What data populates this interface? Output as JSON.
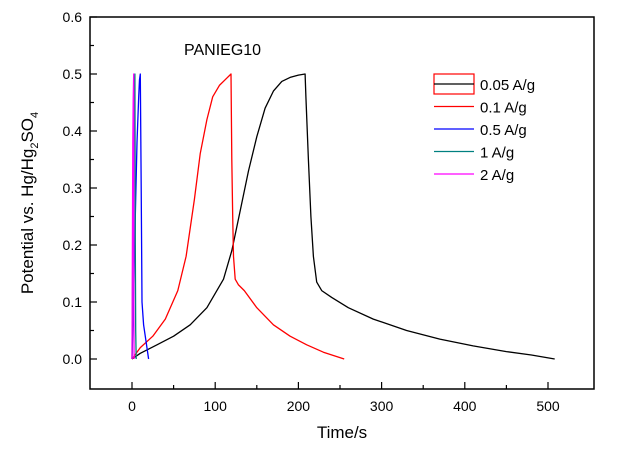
{
  "chart_data": {
    "type": "line",
    "title": "",
    "annotation": "PANIEG10",
    "xlabel": "Time/s",
    "ylabel_main": "Potential vs. Hg/Hg",
    "ylabel_sub1": "2",
    "ylabel_mid": "SO",
    "ylabel_sub2": "4",
    "xlim": [
      -50,
      550
    ],
    "ylim": [
      -0.05,
      0.6
    ],
    "xticks": [
      0,
      100,
      200,
      300,
      400,
      500
    ],
    "xtick_labels": [
      "0",
      "100",
      "200",
      "300",
      "400",
      "500"
    ],
    "xminor": [
      50,
      150,
      250,
      350,
      450
    ],
    "yticks": [
      0.0,
      0.1,
      0.2,
      0.3,
      0.4,
      0.5,
      0.6
    ],
    "ytick_labels": [
      "0.0",
      "0.1",
      "0.2",
      "0.3",
      "0.4",
      "0.5",
      "0.6"
    ],
    "yminor": [
      0.05,
      0.15,
      0.25,
      0.35,
      0.45,
      0.55
    ],
    "grid": false,
    "legend_position": "top-right",
    "series": [
      {
        "name": "0.05 A/g",
        "color": "#000000",
        "x": [
          0,
          10,
          30,
          50,
          70,
          90,
          110,
          120,
          130,
          140,
          150,
          160,
          170,
          180,
          190,
          200,
          208,
          209,
          212,
          215,
          218,
          222,
          228,
          240,
          260,
          290,
          330,
          370,
          410,
          450,
          480,
          508
        ],
        "y": [
          0.0,
          0.01,
          0.025,
          0.04,
          0.06,
          0.09,
          0.14,
          0.19,
          0.26,
          0.33,
          0.39,
          0.44,
          0.47,
          0.487,
          0.494,
          0.498,
          0.5,
          0.46,
          0.35,
          0.25,
          0.18,
          0.135,
          0.12,
          0.108,
          0.09,
          0.07,
          0.05,
          0.035,
          0.023,
          0.013,
          0.007,
          0.0
        ]
      },
      {
        "name": "0.1 A/g",
        "color": "#ff0000",
        "x": [
          0,
          10,
          25,
          40,
          55,
          65,
          75,
          82,
          90,
          97,
          105,
          112,
          119,
          120,
          121,
          122,
          124,
          128,
          135,
          150,
          170,
          190,
          210,
          230,
          255
        ],
        "y": [
          0.0,
          0.02,
          0.04,
          0.07,
          0.12,
          0.18,
          0.28,
          0.36,
          0.42,
          0.46,
          0.48,
          0.49,
          0.5,
          0.35,
          0.25,
          0.18,
          0.14,
          0.13,
          0.12,
          0.09,
          0.06,
          0.04,
          0.025,
          0.012,
          0.0
        ]
      },
      {
        "name": "0.5 A/g",
        "color": "#0000ff",
        "x": [
          0,
          2,
          4,
          6,
          8,
          9,
          10,
          11,
          12,
          14,
          17,
          20
        ],
        "y": [
          0.0,
          0.12,
          0.25,
          0.38,
          0.46,
          0.49,
          0.5,
          0.3,
          0.1,
          0.06,
          0.03,
          0.0
        ]
      },
      {
        "name": "1 A/g",
        "color": "#008080",
        "x": [
          0,
          1,
          2,
          3,
          3.5,
          4,
          4.5,
          5
        ],
        "y": [
          0.0,
          0.2,
          0.4,
          0.49,
          0.5,
          0.2,
          0.05,
          0.0
        ]
      },
      {
        "name": "2 A/g",
        "color": "#ff00ff",
        "x": [
          0,
          0.5,
          1,
          1.5,
          2,
          2.2,
          2.5
        ],
        "y": [
          0.0,
          0.2,
          0.38,
          0.455,
          0.5,
          0.1,
          0.0
        ]
      }
    ]
  }
}
